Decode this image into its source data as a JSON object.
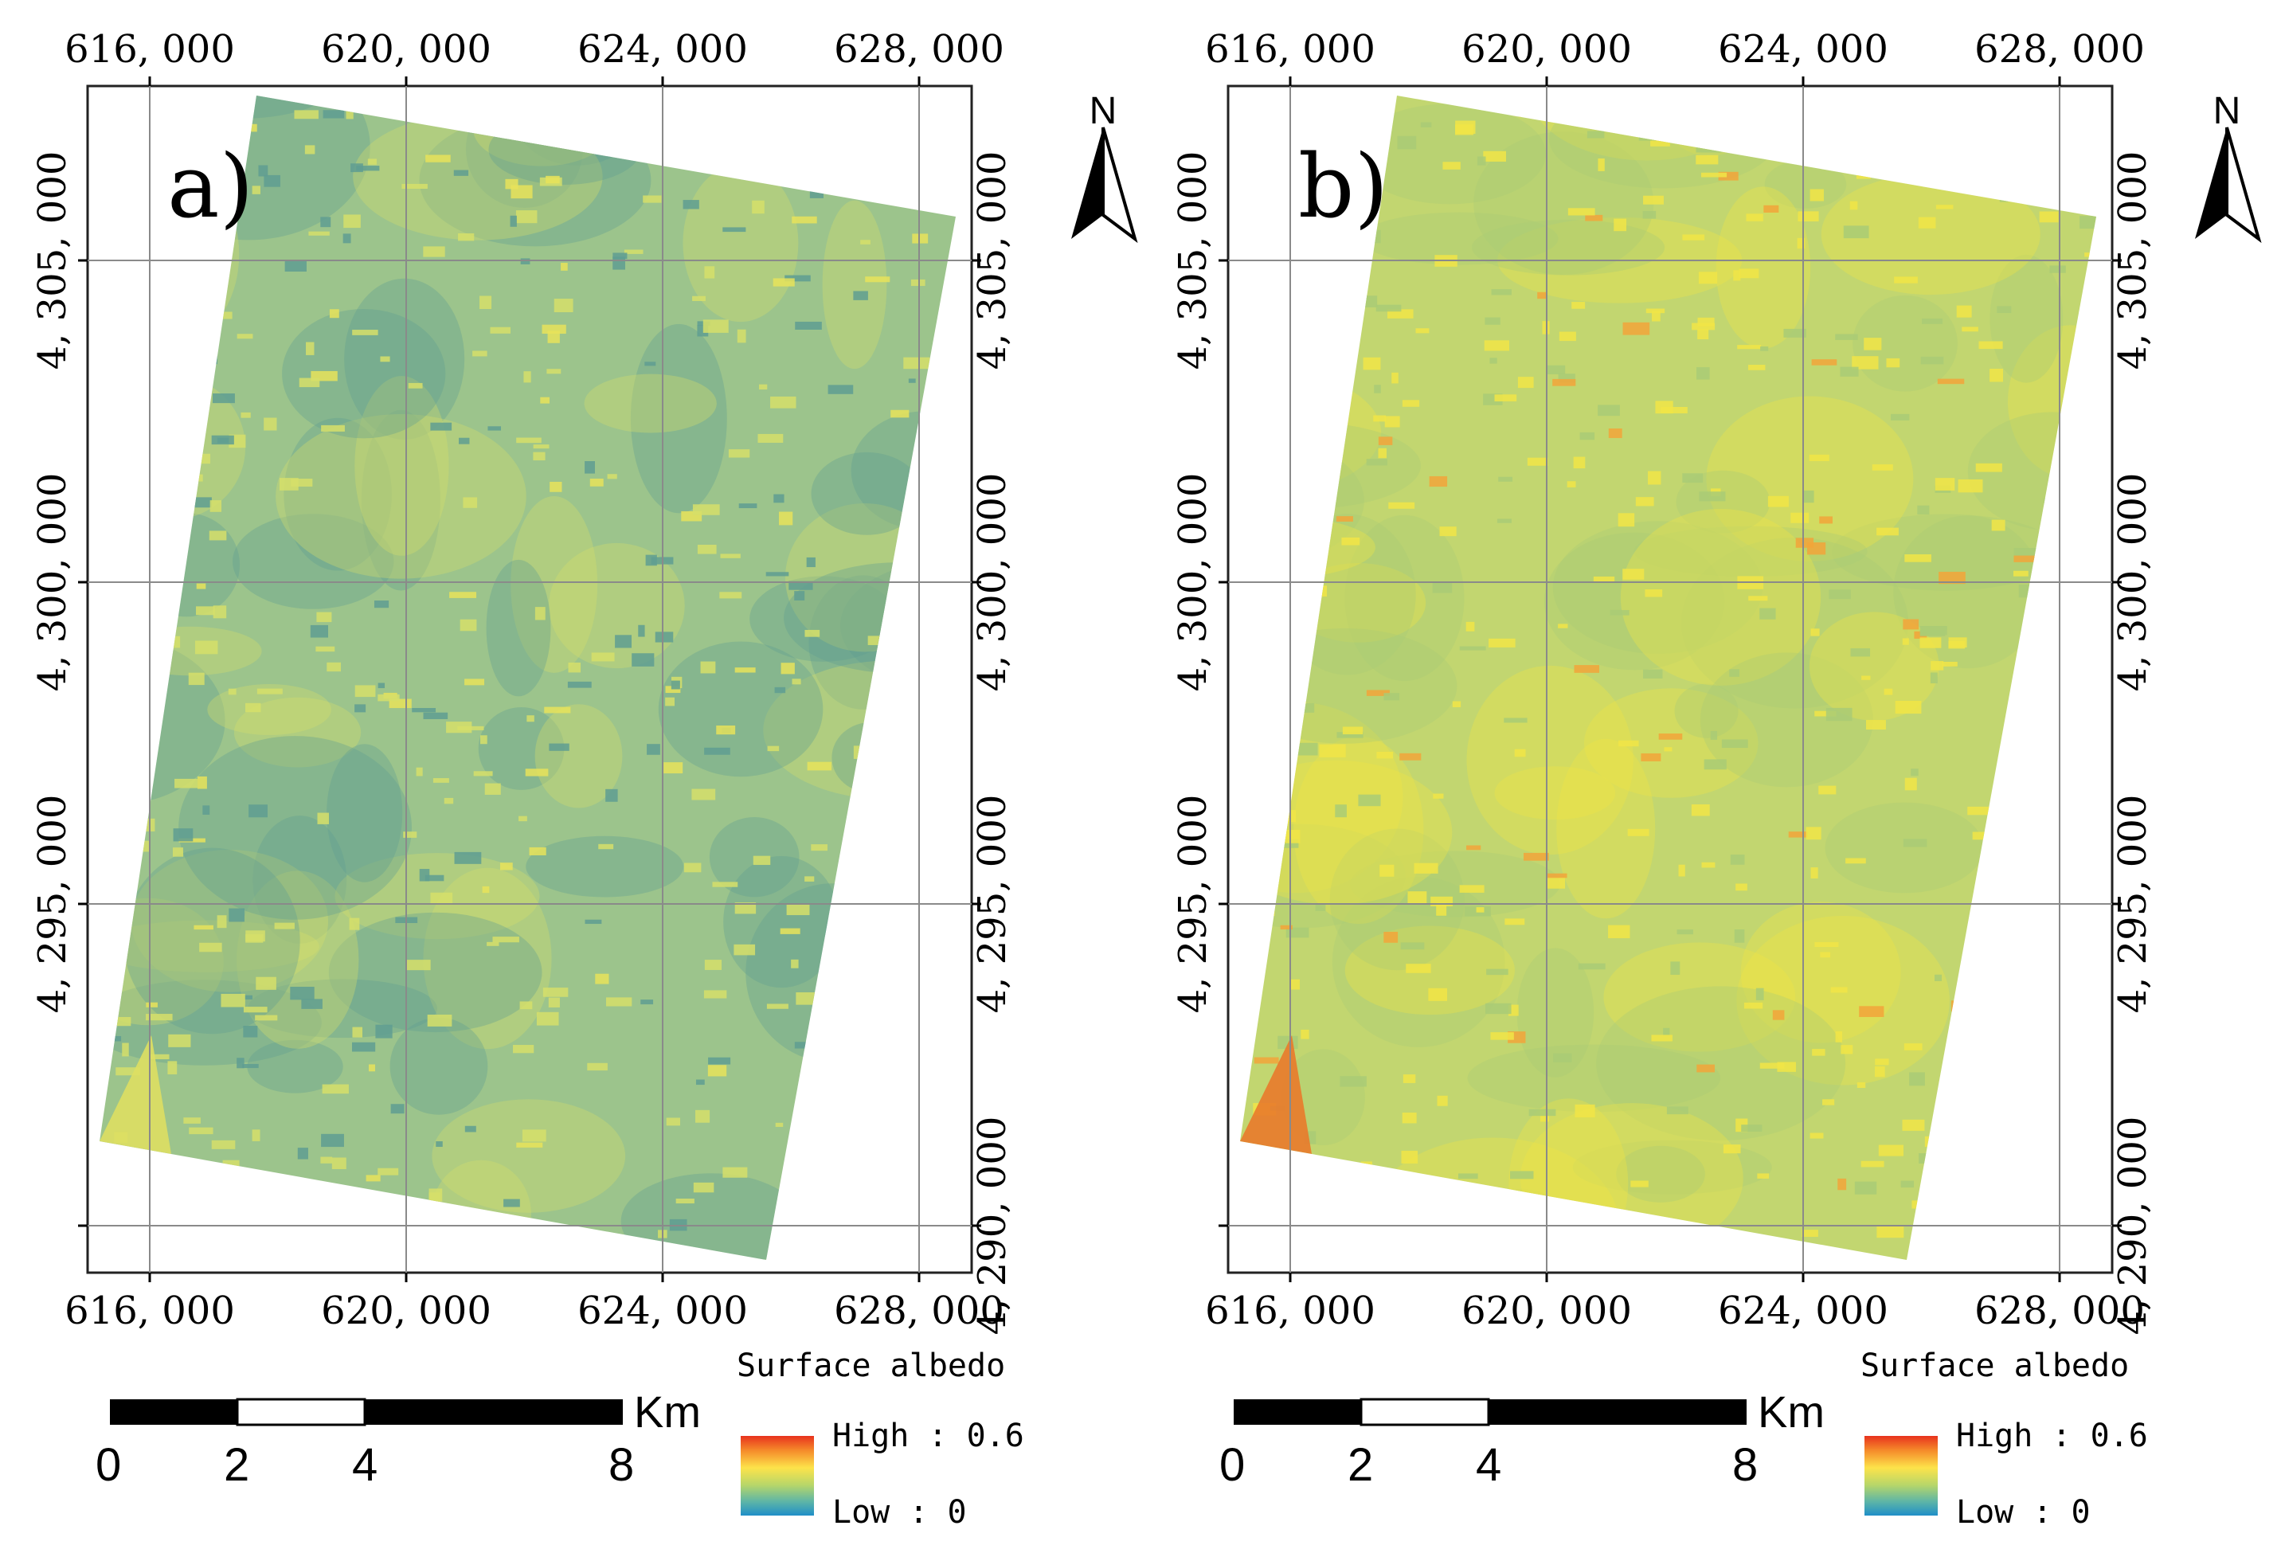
{
  "figure": {
    "panels": [
      {
        "id": "a",
        "label": "a)",
        "colors": {
          "base": "#9cc48c",
          "dark": "#5f9d92",
          "light": "#d6df6a",
          "hot": "#e7e35a",
          "corner": "#dedf62"
        },
        "x_ticks": [
          "616, 000",
          "620, 000",
          "624, 000",
          "628, 000"
        ],
        "y_ticks": [
          "4, 305, 000",
          "4, 300, 000",
          "4, 295, 000",
          "4, 290, 000"
        ],
        "north": "N",
        "scale": {
          "labels": [
            "0",
            "2",
            "4",
            "8"
          ],
          "unit": "Km"
        },
        "legend": {
          "title": "Surface albedo",
          "high": "High : 0.6",
          "low": "Low : 0"
        }
      },
      {
        "id": "b",
        "label": "b)",
        "colors": {
          "base": "#c2d670",
          "dark": "#a9cb76",
          "light": "#f1e546",
          "hot": "#f2a43a",
          "corner": "#e97a2b"
        },
        "x_ticks": [
          "616, 000",
          "620, 000",
          "624, 000",
          "628, 000"
        ],
        "y_ticks": [
          "4, 305, 000",
          "4, 300, 000",
          "4, 295, 000",
          "4, 290, 000"
        ],
        "north": "N",
        "scale": {
          "labels": [
            "0",
            "2",
            "4",
            "8"
          ],
          "unit": "Km"
        },
        "legend": {
          "title": "Surface albedo",
          "high": "High : 0.6",
          "low": "Low : 0"
        }
      }
    ]
  }
}
